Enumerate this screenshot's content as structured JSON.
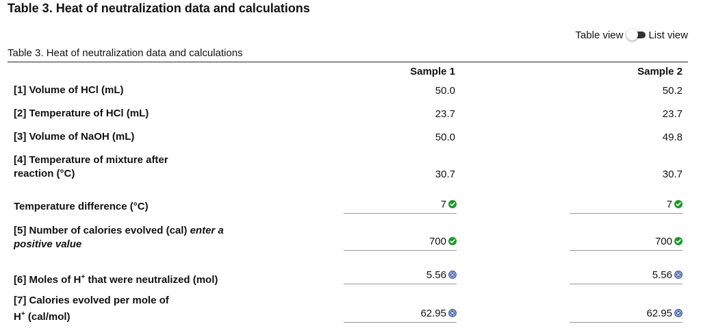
{
  "page_title": "Table 3. Heat of neutralization data and calculations",
  "view_toggle": {
    "table_label": "Table view",
    "list_label": "List view"
  },
  "caption": "Table 3. Heat of neutralization data and calculations",
  "columns": [
    "Sample 1",
    "Sample 2"
  ],
  "rows": [
    {
      "label": "[1] Volume of HCl (mL)",
      "values": [
        "50.0",
        "50.2"
      ]
    },
    {
      "label": "[2] Temperature of HCl (mL)",
      "values": [
        "23.7",
        "23.7"
      ]
    },
    {
      "label": "[3] Volume of NaOH (mL)",
      "values": [
        "50.0",
        "49.8"
      ]
    },
    {
      "label_line1": "[4] Temperature of mixture after",
      "label_line2": "reaction (°C)",
      "values": [
        "30.7",
        "30.7"
      ]
    }
  ],
  "inputs": [
    {
      "label": "Temperature difference (°C)",
      "values": [
        "7",
        "7"
      ],
      "status": "correct"
    },
    {
      "label_main": "[5] Number of calories evolved (cal) ",
      "label_em1": "enter a",
      "label_em2": "positive value",
      "values": [
        "700",
        "700"
      ],
      "status": "correct"
    },
    {
      "label_pre": "[6] Moles of H",
      "sup": "+",
      "label_post": " that were neutralized (mol)",
      "values": [
        "5.56",
        "5.56"
      ],
      "status": "incorrect"
    },
    {
      "label_line1": "[7] Calories evolved per mole of",
      "label_pre2": "H",
      "sup": "+",
      "label_post2": " (cal/mol)",
      "values": [
        "62.95",
        "62.95"
      ],
      "status": "incorrect"
    }
  ],
  "colors": {
    "correct": "#1a9a2a",
    "incorrect": "#1f3f99"
  }
}
